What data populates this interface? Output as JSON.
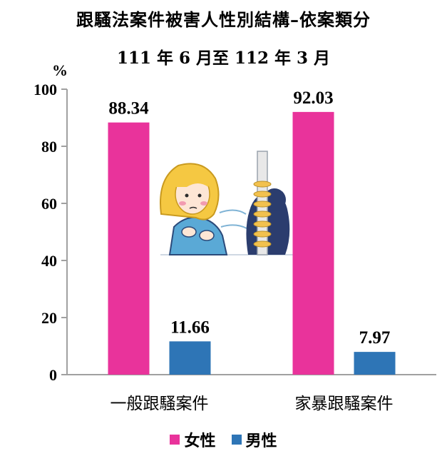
{
  "title": "跟騷法案件被害人性別結構–依案類分",
  "subtitle": "111 年 6 月至 112 年 3 月",
  "chart_data": {
    "type": "bar",
    "unit_label": "%",
    "categories": [
      "一般跟騷案件",
      "家暴跟騷案件"
    ],
    "series": [
      {
        "name": "女性",
        "color": "#E9339B",
        "values": [
          88.34,
          92.03
        ]
      },
      {
        "name": "男性",
        "color": "#2E75B6",
        "values": [
          11.66,
          7.97
        ]
      }
    ],
    "value_labels": [
      [
        "88.34",
        "92.03"
      ],
      [
        "11.66",
        "7.97"
      ]
    ],
    "ylim": [
      0,
      100
    ],
    "yticks": [
      0,
      20,
      40,
      60,
      80,
      100
    ],
    "legend_position": "bottom",
    "grid": false
  }
}
